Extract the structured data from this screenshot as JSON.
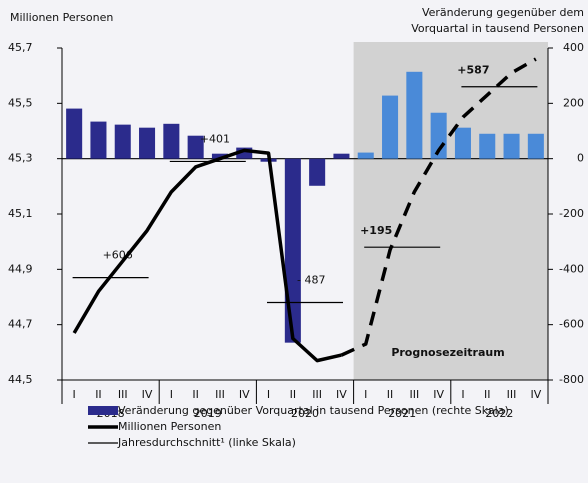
{
  "chart_data": {
    "type": "bar_line",
    "y_label": "Millionen Personen",
    "y2_label": [
      "Veränderung gegenüber dem",
      "Vorquartal in tausend Personen"
    ],
    "categories": [
      "I",
      "II",
      "III",
      "IV",
      "I",
      "II",
      "III",
      "IV",
      "I",
      "II",
      "III",
      "IV",
      "I",
      "II",
      "III",
      "IV",
      "I",
      "II",
      "III",
      "IV"
    ],
    "years": [
      "2018",
      "2019",
      "2020",
      "2021",
      "2022"
    ],
    "forecast_start": 12,
    "forecast_label": "Prognosezeitraum",
    "ylim": [
      44.5,
      45.7
    ],
    "yticks": [
      {
        "value": 44.5,
        "label": "44,5"
      },
      {
        "value": 44.7,
        "label": "44,7"
      },
      {
        "value": 44.9,
        "label": "44,9"
      },
      {
        "value": 45.1,
        "label": "45,1"
      },
      {
        "value": 45.3,
        "label": "45,3"
      },
      {
        "value": 45.5,
        "label": "45,5"
      },
      {
        "value": 45.7,
        "label": "45,7"
      }
    ],
    "y2lim": [
      -800,
      400
    ],
    "y2ticks": [
      -800,
      -600,
      -400,
      -200,
      0,
      200,
      400
    ],
    "bars": {
      "name": "Veränderung gegenüber Vorquartal in tausend Personen (rechte Skala)",
      "axis": "y2",
      "color": "#2b2b8c",
      "forecast_color": "#4a8ad8",
      "values": [
        181,
        134,
        123,
        112,
        126,
        83,
        18,
        40,
        -11,
        -665,
        -98,
        18,
        22,
        228,
        314,
        166,
        112,
        90,
        90,
        90
      ]
    },
    "line": {
      "name": "Millionen Personen",
      "color": "#000000",
      "values": [
        44.67,
        44.82,
        44.93,
        45.04,
        45.18,
        45.27,
        45.3,
        45.33,
        45.32,
        44.65,
        44.57,
        44.59,
        44.63,
        44.97,
        45.18,
        45.33,
        45.45,
        45.53,
        45.61,
        45.66
      ]
    },
    "averages": {
      "name": "Jahresdurchschnitt¹ (linke Skala)",
      "values": [
        44.87,
        45.29,
        44.78,
        44.98,
        45.56
      ],
      "labels": [
        "+606",
        "+401",
        "- 487",
        "+195",
        "+587"
      ]
    }
  }
}
